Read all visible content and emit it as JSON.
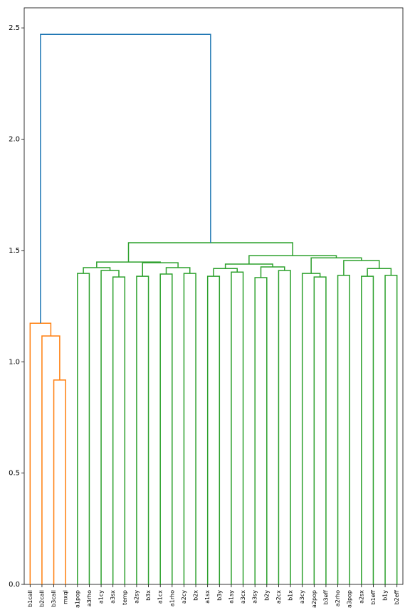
{
  "chart_data": {
    "type": "dendrogram",
    "leaves": [
      "b1call",
      "b2call",
      "b3call",
      "mxql",
      "a1pop",
      "a3rho",
      "a1cy",
      "a3sx",
      "temp",
      "a2sy",
      "b3x",
      "a1cx",
      "a1rho",
      "a2cy",
      "b2x",
      "a1sx",
      "b3y",
      "a1sy",
      "a3cx",
      "a3sy",
      "b2y",
      "a2cx",
      "b1x",
      "a3cy",
      "a2pop",
      "b3eff",
      "a2rho",
      "a3pop",
      "a2sx",
      "b1eff",
      "b1y",
      "b2eff"
    ],
    "links": [
      {
        "children": [
          2,
          3
        ],
        "height": 0.918,
        "color": "#ff7f0e"
      },
      {
        "children": [
          1,
          32
        ],
        "height": 1.116,
        "color": "#ff7f0e"
      },
      {
        "children": [
          0,
          33
        ],
        "height": 1.173,
        "color": "#ff7f0e"
      },
      {
        "children": [
          4,
          5
        ],
        "height": 1.397,
        "color": "#2ca02c"
      },
      {
        "children": [
          7,
          8
        ],
        "height": 1.381,
        "color": "#2ca02c"
      },
      {
        "children": [
          6,
          36
        ],
        "height": 1.41,
        "color": "#2ca02c"
      },
      {
        "children": [
          35,
          37
        ],
        "height": 1.423,
        "color": "#2ca02c"
      },
      {
        "children": [
          9,
          10
        ],
        "height": 1.384,
        "color": "#2ca02c"
      },
      {
        "children": [
          11,
          12
        ],
        "height": 1.394,
        "color": "#2ca02c"
      },
      {
        "children": [
          13,
          14
        ],
        "height": 1.397,
        "color": "#2ca02c"
      },
      {
        "children": [
          40,
          41
        ],
        "height": 1.423,
        "color": "#2ca02c"
      },
      {
        "children": [
          39,
          42
        ],
        "height": 1.445,
        "color": "#2ca02c"
      },
      {
        "children": [
          38,
          43
        ],
        "height": 1.448,
        "color": "#2ca02c"
      },
      {
        "children": [
          15,
          16
        ],
        "height": 1.384,
        "color": "#2ca02c"
      },
      {
        "children": [
          17,
          18
        ],
        "height": 1.403,
        "color": "#2ca02c"
      },
      {
        "children": [
          45,
          46
        ],
        "height": 1.419,
        "color": "#2ca02c"
      },
      {
        "children": [
          19,
          20
        ],
        "height": 1.378,
        "color": "#2ca02c"
      },
      {
        "children": [
          21,
          22
        ],
        "height": 1.41,
        "color": "#2ca02c"
      },
      {
        "children": [
          48,
          49
        ],
        "height": 1.426,
        "color": "#2ca02c"
      },
      {
        "children": [
          47,
          50
        ],
        "height": 1.439,
        "color": "#2ca02c"
      },
      {
        "children": [
          24,
          25
        ],
        "height": 1.381,
        "color": "#2ca02c"
      },
      {
        "children": [
          23,
          52
        ],
        "height": 1.397,
        "color": "#2ca02c"
      },
      {
        "children": [
          26,
          27
        ],
        "height": 1.388,
        "color": "#2ca02c"
      },
      {
        "children": [
          28,
          29
        ],
        "height": 1.384,
        "color": "#2ca02c"
      },
      {
        "children": [
          30,
          31
        ],
        "height": 1.388,
        "color": "#2ca02c"
      },
      {
        "children": [
          55,
          56
        ],
        "height": 1.419,
        "color": "#2ca02c"
      },
      {
        "children": [
          54,
          57
        ],
        "height": 1.455,
        "color": "#2ca02c"
      },
      {
        "children": [
          53,
          58
        ],
        "height": 1.467,
        "color": "#2ca02c"
      },
      {
        "children": [
          51,
          59
        ],
        "height": 1.477,
        "color": "#2ca02c"
      },
      {
        "children": [
          44,
          60
        ],
        "height": 1.535,
        "color": "#2ca02c"
      },
      {
        "children": [
          34,
          61
        ],
        "height": 2.471,
        "color": "#1f77b4"
      }
    ],
    "ylim": [
      0,
      2.59
    ],
    "yticks": [
      {
        "value": 0,
        "label": "0.0"
      },
      {
        "value": 0.5,
        "label": "0.5"
      },
      {
        "value": 1,
        "label": "1.0"
      },
      {
        "value": 1.5,
        "label": "1.5"
      },
      {
        "value": 2,
        "label": "2.0"
      },
      {
        "value": 2.5,
        "label": "2.5"
      }
    ]
  }
}
